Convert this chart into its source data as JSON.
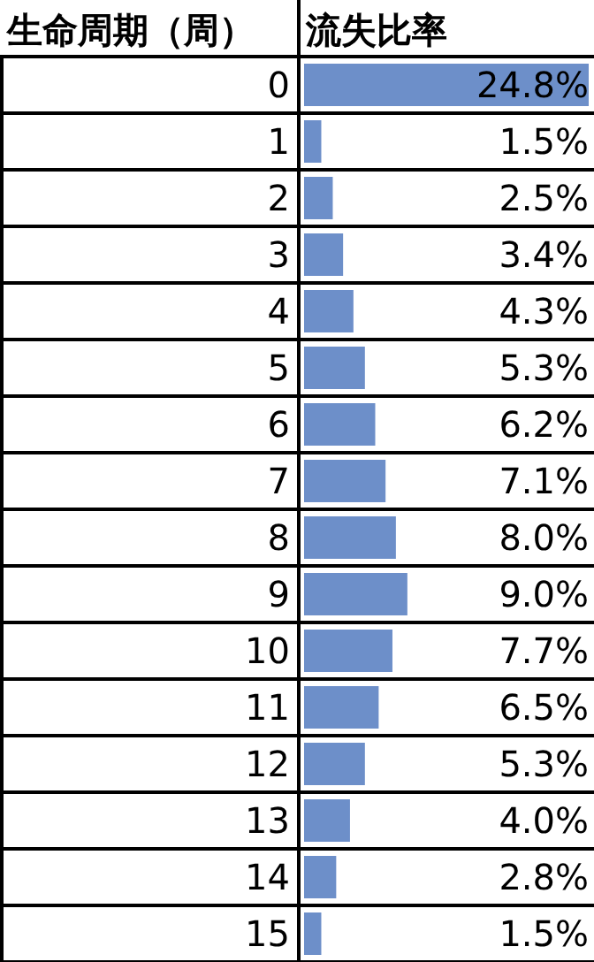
{
  "chart_data": {
    "type": "bar",
    "orientation": "horizontal",
    "ylabel": "生命周期（周）",
    "xlabel": "流失比率",
    "categories": [
      "0",
      "1",
      "2",
      "3",
      "4",
      "5",
      "6",
      "7",
      "8",
      "9",
      "10",
      "11",
      "12",
      "13",
      "14",
      "15"
    ],
    "values": [
      24.8,
      1.5,
      2.5,
      3.4,
      4.3,
      5.3,
      6.2,
      7.1,
      8.0,
      9.0,
      7.7,
      6.5,
      5.3,
      4.0,
      2.8,
      1.5
    ],
    "value_labels": [
      "24.8%",
      "1.5%",
      "2.5%",
      "3.4%",
      "4.3%",
      "5.3%",
      "6.2%",
      "7.1%",
      "8.0%",
      "9.0%",
      "7.7%",
      "6.5%",
      "5.3%",
      "4.0%",
      "2.8%",
      "1.5%"
    ],
    "color": "#6d8fc9"
  }
}
